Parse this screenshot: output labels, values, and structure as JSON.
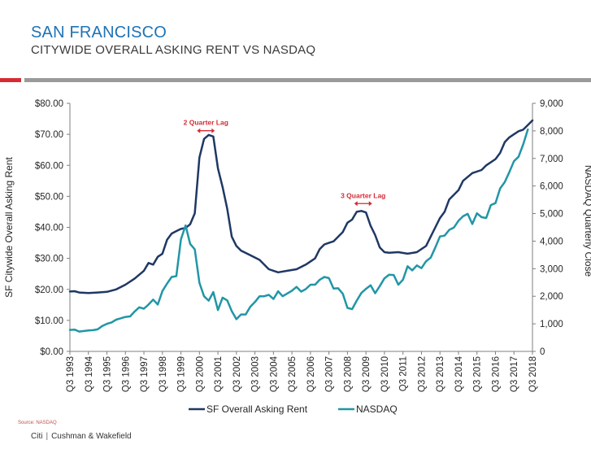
{
  "header": {
    "title": "SAN FRANCISCO",
    "subtitle": "CITYWIDE OVERALL ASKING RENT VS NASDAQ"
  },
  "footer": {
    "source": "Source: NASDAQ",
    "brand_left": "Citi",
    "separator": "|",
    "brand_right": "Cushman & Wakefield"
  },
  "colors": {
    "accent_title": "#1e73b5",
    "rent_series": "#1f3864",
    "nasdaq_series": "#2196a6",
    "annotation": "#d62b35"
  },
  "chart_data": {
    "type": "line",
    "x_categories": [
      "Q3 1993",
      "Q3 1994",
      "Q3 1995",
      "Q3 1996",
      "Q3 1997",
      "Q3 1998",
      "Q3 1999",
      "Q3 2000",
      "Q3 2001",
      "Q3 2002",
      "Q3 2003",
      "Q3 2004",
      "Q3 2005",
      "Q3 2006",
      "Q3 2007",
      "Q3 2008",
      "Q3 2009",
      "Q3 2010",
      "Q3 2011",
      "Q3 2012",
      "Q3 2013",
      "Q3 2014",
      "Q3 2015",
      "Q3 2016",
      "Q3 2017",
      "Q3 2018"
    ],
    "y_left": {
      "label": "SF Citywide Overall Asking Rent",
      "ylim": [
        0,
        80
      ],
      "ticks": [
        "$0.00",
        "$10.00",
        "$20.00",
        "$30.00",
        "$40.00",
        "$50.00",
        "$60.00",
        "$70.00",
        "$80.00"
      ]
    },
    "y_right": {
      "label": "NASDAQ Quarterly Close",
      "ylim": [
        0,
        9000
      ],
      "ticks": [
        "0",
        "1,000",
        "2,000",
        "3,000",
        "4,000",
        "5,000",
        "6,000",
        "7,000",
        "8,000",
        "9,000"
      ]
    },
    "legend": {
      "position": "bottom"
    },
    "series": [
      {
        "name": "SF Overall Asking Rent",
        "axis": "left",
        "points": [
          [
            1993.75,
            19.3
          ],
          [
            1994.0,
            19.4
          ],
          [
            1994.25,
            19.0
          ],
          [
            1994.75,
            18.8
          ],
          [
            1995.25,
            19.0
          ],
          [
            1995.75,
            19.2
          ],
          [
            1996.25,
            20.0
          ],
          [
            1996.75,
            21.5
          ],
          [
            1997.25,
            23.5
          ],
          [
            1997.75,
            26.0
          ],
          [
            1998.0,
            28.5
          ],
          [
            1998.25,
            28.0
          ],
          [
            1998.5,
            30.5
          ],
          [
            1998.75,
            31.5
          ],
          [
            1999.0,
            36.0
          ],
          [
            1999.25,
            38.0
          ],
          [
            1999.5,
            38.8
          ],
          [
            1999.75,
            39.5
          ],
          [
            2000.0,
            39.8
          ],
          [
            2000.25,
            41.0
          ],
          [
            2000.5,
            44.5
          ],
          [
            2000.75,
            62.5
          ],
          [
            2001.0,
            68.5
          ],
          [
            2001.25,
            69.8
          ],
          [
            2001.5,
            69.3
          ],
          [
            2001.75,
            59.0
          ],
          [
            2002.0,
            53.0
          ],
          [
            2002.25,
            46.0
          ],
          [
            2002.5,
            37.0
          ],
          [
            2002.75,
            34.0
          ],
          [
            2003.0,
            32.5
          ],
          [
            2003.5,
            31.0
          ],
          [
            2004.0,
            29.5
          ],
          [
            2004.5,
            26.5
          ],
          [
            2005.0,
            25.5
          ],
          [
            2005.5,
            26.0
          ],
          [
            2006.0,
            26.5
          ],
          [
            2006.5,
            28.0
          ],
          [
            2007.0,
            30.0
          ],
          [
            2007.25,
            33.0
          ],
          [
            2007.5,
            34.5
          ],
          [
            2007.75,
            35.0
          ],
          [
            2008.0,
            35.5
          ],
          [
            2008.5,
            38.5
          ],
          [
            2008.75,
            41.5
          ],
          [
            2009.0,
            42.5
          ],
          [
            2009.25,
            45.0
          ],
          [
            2009.5,
            45.3
          ],
          [
            2009.75,
            44.8
          ],
          [
            2010.0,
            40.5
          ],
          [
            2010.25,
            37.5
          ],
          [
            2010.5,
            33.5
          ],
          [
            2010.75,
            32.0
          ],
          [
            2011.0,
            31.8
          ],
          [
            2011.5,
            32.0
          ],
          [
            2012.0,
            31.5
          ],
          [
            2012.5,
            32.0
          ],
          [
            2013.0,
            34.0
          ],
          [
            2013.25,
            37.0
          ],
          [
            2013.5,
            40.0
          ],
          [
            2013.75,
            43.0
          ],
          [
            2014.0,
            45.0
          ],
          [
            2014.25,
            49.0
          ],
          [
            2014.5,
            50.5
          ],
          [
            2014.75,
            52.0
          ],
          [
            2015.0,
            55.0
          ],
          [
            2015.5,
            57.5
          ],
          [
            2016.0,
            58.5
          ],
          [
            2016.25,
            60.0
          ],
          [
            2016.75,
            62.0
          ],
          [
            2017.0,
            64.0
          ],
          [
            2017.25,
            67.5
          ],
          [
            2017.5,
            69.0
          ],
          [
            2017.75,
            70.0
          ],
          [
            2018.0,
            71.0
          ],
          [
            2018.25,
            71.5
          ],
          [
            2018.5,
            73.0
          ],
          [
            2018.75,
            74.5
          ]
        ]
      },
      {
        "name": "NASDAQ",
        "axis": "right",
        "points": [
          [
            1993.75,
            780
          ],
          [
            1994.0,
            790
          ],
          [
            1994.25,
            720
          ],
          [
            1994.75,
            760
          ],
          [
            1995.0,
            770
          ],
          [
            1995.25,
            800
          ],
          [
            1995.5,
            920
          ],
          [
            1995.75,
            1000
          ],
          [
            1996.0,
            1050
          ],
          [
            1996.25,
            1150
          ],
          [
            1996.5,
            1200
          ],
          [
            1996.75,
            1250
          ],
          [
            1997.0,
            1270
          ],
          [
            1997.25,
            1450
          ],
          [
            1997.5,
            1600
          ],
          [
            1997.75,
            1550
          ],
          [
            1998.0,
            1700
          ],
          [
            1998.25,
            1880
          ],
          [
            1998.5,
            1700
          ],
          [
            1998.75,
            2190
          ],
          [
            1999.0,
            2460
          ],
          [
            1999.25,
            2700
          ],
          [
            1999.5,
            2730
          ],
          [
            1999.75,
            4069
          ],
          [
            2000.0,
            4570
          ],
          [
            2000.25,
            3900
          ],
          [
            2000.5,
            3700
          ],
          [
            2000.75,
            2490
          ],
          [
            2001.0,
            2000
          ],
          [
            2001.25,
            1840
          ],
          [
            2001.5,
            2150
          ],
          [
            2001.75,
            1500
          ],
          [
            2002.0,
            1950
          ],
          [
            2002.25,
            1850
          ],
          [
            2002.5,
            1460
          ],
          [
            2002.75,
            1170
          ],
          [
            2003.0,
            1340
          ],
          [
            2003.25,
            1340
          ],
          [
            2003.5,
            1620
          ],
          [
            2003.75,
            1790
          ],
          [
            2004.0,
            2000
          ],
          [
            2004.25,
            2000
          ],
          [
            2004.5,
            2050
          ],
          [
            2004.75,
            1900
          ],
          [
            2005.0,
            2180
          ],
          [
            2005.25,
            2000
          ],
          [
            2005.5,
            2100
          ],
          [
            2005.75,
            2200
          ],
          [
            2006.0,
            2340
          ],
          [
            2006.25,
            2170
          ],
          [
            2006.5,
            2260
          ],
          [
            2006.75,
            2420
          ],
          [
            2007.0,
            2420
          ],
          [
            2007.25,
            2600
          ],
          [
            2007.5,
            2700
          ],
          [
            2007.75,
            2660
          ],
          [
            2008.0,
            2280
          ],
          [
            2008.25,
            2290
          ],
          [
            2008.5,
            2090
          ],
          [
            2008.75,
            1580
          ],
          [
            2009.0,
            1530
          ],
          [
            2009.25,
            1840
          ],
          [
            2009.5,
            2120
          ],
          [
            2009.75,
            2270
          ],
          [
            2010.0,
            2400
          ],
          [
            2010.25,
            2110
          ],
          [
            2010.5,
            2370
          ],
          [
            2010.75,
            2650
          ],
          [
            2011.0,
            2780
          ],
          [
            2011.25,
            2770
          ],
          [
            2011.5,
            2420
          ],
          [
            2011.75,
            2600
          ],
          [
            2012.0,
            3090
          ],
          [
            2012.25,
            2940
          ],
          [
            2012.5,
            3120
          ],
          [
            2012.75,
            3020
          ],
          [
            2013.0,
            3270
          ],
          [
            2013.25,
            3400
          ],
          [
            2013.5,
            3770
          ],
          [
            2013.75,
            4170
          ],
          [
            2014.0,
            4200
          ],
          [
            2014.25,
            4410
          ],
          [
            2014.5,
            4490
          ],
          [
            2014.75,
            4740
          ],
          [
            2015.0,
            4900
          ],
          [
            2015.25,
            4990
          ],
          [
            2015.5,
            4620
          ],
          [
            2015.75,
            5010
          ],
          [
            2016.0,
            4870
          ],
          [
            2016.25,
            4840
          ],
          [
            2016.5,
            5310
          ],
          [
            2016.75,
            5380
          ],
          [
            2017.0,
            5910
          ],
          [
            2017.25,
            6140
          ],
          [
            2017.5,
            6500
          ],
          [
            2017.75,
            6900
          ],
          [
            2018.0,
            7060
          ],
          [
            2018.25,
            7510
          ],
          [
            2018.5,
            8050
          ]
        ]
      }
    ],
    "annotations": [
      {
        "text": "2 Quarter Lag",
        "x": 2001.1,
        "y": 73.0,
        "axis": "left"
      },
      {
        "text": "3 Quarter Lag",
        "x": 2009.6,
        "y": 49.5,
        "axis": "left"
      }
    ]
  }
}
